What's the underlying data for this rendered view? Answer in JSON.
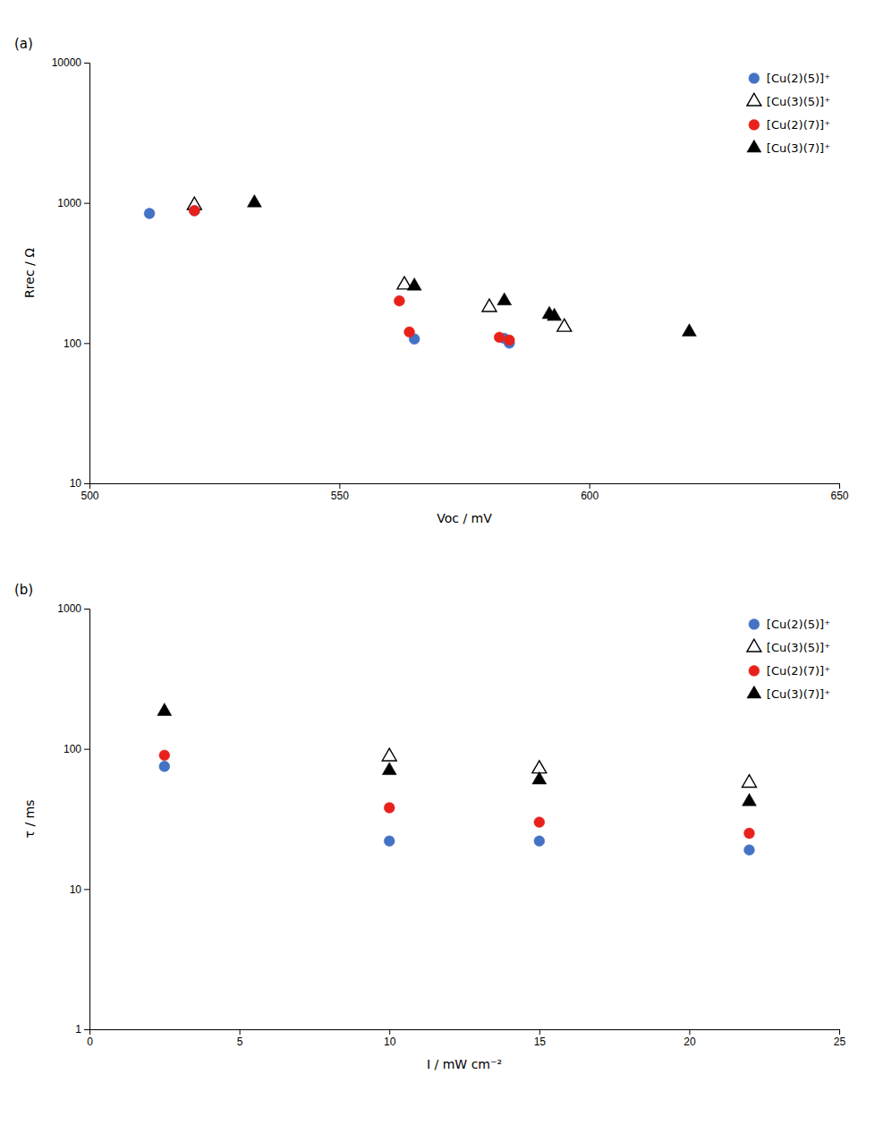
{
  "chart_data": [
    {
      "type": "scatter",
      "title": "(a)",
      "xlabel": "Voc / mV",
      "ylabel": "Rrec / Ω",
      "log": "y",
      "grid": false,
      "legend": "upper right",
      "xlim": [
        500,
        650
      ],
      "xticks": [
        500,
        550,
        600,
        650
      ],
      "ylim": [
        10,
        10000
      ],
      "yticks": [
        10,
        100,
        1000,
        10000
      ],
      "series": [
        {
          "name": "[Cu(2)(5)]⁺",
          "color": "#4472C4",
          "marker": "circle",
          "x": [
            512,
            521,
            565,
            583,
            584
          ],
          "values": [
            840,
            880,
            107,
            108,
            100
          ]
        },
        {
          "name": "[Cu(3)(5)]⁺",
          "color": "black",
          "marker": "triangle-open",
          "x": [
            521,
            563,
            580,
            595
          ],
          "values": [
            960,
            260,
            180,
            130
          ]
        },
        {
          "name": "[Cu(2)(7)]⁺",
          "color": "#E8211A",
          "marker": "circle",
          "x": [
            521,
            562,
            564,
            582,
            584
          ],
          "values": [
            880,
            200,
            120,
            110,
            105
          ]
        },
        {
          "name": "[Cu(3)(7)]⁺",
          "color": "black",
          "marker": "triangle",
          "x": [
            533,
            565,
            583,
            592,
            593,
            620
          ],
          "values": [
            1000,
            255,
            200,
            160,
            155,
            120
          ]
        }
      ]
    },
    {
      "type": "scatter",
      "title": "(b)",
      "xlabel": "I / mW cm⁻²",
      "ylabel": "τ / ms",
      "log": "y",
      "grid": false,
      "legend": "upper right",
      "xlim": [
        0,
        25
      ],
      "xticks": [
        0,
        5,
        10,
        15,
        20,
        25
      ],
      "ylim": [
        1,
        1000
      ],
      "yticks": [
        1,
        10,
        100,
        1000
      ],
      "series": [
        {
          "name": "[Cu(2)(5)]⁺",
          "color": "#4472C4",
          "marker": "circle",
          "x": [
            2.5,
            10,
            15,
            22
          ],
          "values": [
            75,
            22,
            22,
            19
          ]
        },
        {
          "name": "[Cu(3)(5)]⁺",
          "color": "black",
          "marker": "triangle-open",
          "x": [
            10,
            15,
            22
          ],
          "values": [
            88,
            72,
            57
          ]
        },
        {
          "name": "[Cu(2)(7)]⁺",
          "color": "#E8211A",
          "marker": "circle",
          "x": [
            2.5,
            10,
            15,
            22
          ],
          "values": [
            90,
            38,
            30,
            25
          ]
        },
        {
          "name": "[Cu(3)(7)]⁺",
          "color": "black",
          "marker": "triangle",
          "x": [
            2.5,
            10,
            15,
            22
          ],
          "values": [
            185,
            70,
            60,
            42
          ]
        }
      ]
    }
  ]
}
